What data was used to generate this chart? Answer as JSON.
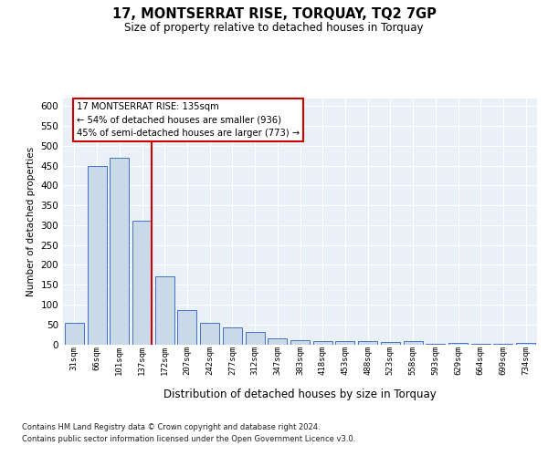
{
  "title": "17, MONTSERRAT RISE, TORQUAY, TQ2 7GP",
  "subtitle": "Size of property relative to detached houses in Torquay",
  "xlabel": "Distribution of detached houses by size in Torquay",
  "ylabel": "Number of detached properties",
  "categories": [
    "31sqm",
    "66sqm",
    "101sqm",
    "137sqm",
    "172sqm",
    "207sqm",
    "242sqm",
    "277sqm",
    "312sqm",
    "347sqm",
    "383sqm",
    "418sqm",
    "453sqm",
    "488sqm",
    "523sqm",
    "558sqm",
    "593sqm",
    "629sqm",
    "664sqm",
    "699sqm",
    "734sqm"
  ],
  "values": [
    53,
    450,
    470,
    312,
    172,
    87,
    55,
    42,
    30,
    15,
    10,
    8,
    8,
    7,
    6,
    8,
    2,
    4,
    1,
    1,
    3
  ],
  "bar_color": "#c9d9e8",
  "bar_edge_color": "#4472c4",
  "highlight_index": 3,
  "highlight_line_color": "#cc0000",
  "annotation_line1": "17 MONTSERRAT RISE: 135sqm",
  "annotation_line2": "← 54% of detached houses are smaller (936)",
  "annotation_line3": "45% of semi-detached houses are larger (773) →",
  "annotation_box_facecolor": "#ffffff",
  "annotation_box_edgecolor": "#cc0000",
  "footnote1": "Contains HM Land Registry data © Crown copyright and database right 2024.",
  "footnote2": "Contains public sector information licensed under the Open Government Licence v3.0.",
  "background_color": "#ffffff",
  "plot_background_color": "#eaf0f8",
  "grid_color": "#ffffff",
  "ylim": [
    0,
    620
  ],
  "yticks": [
    0,
    50,
    100,
    150,
    200,
    250,
    300,
    350,
    400,
    450,
    500,
    550,
    600
  ]
}
